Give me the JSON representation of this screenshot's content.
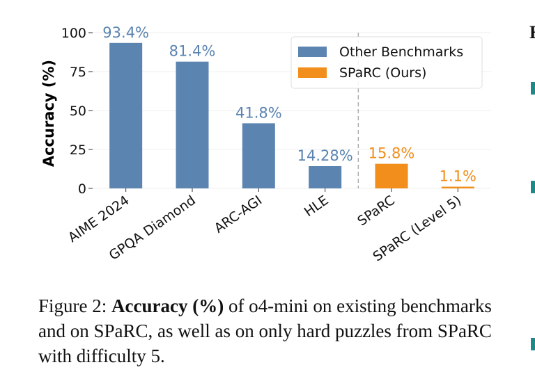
{
  "chart_data": {
    "type": "bar",
    "categories": [
      "AIME 2024",
      "GPQA Diamond",
      "ARC-AGI",
      "HLE",
      "SPaRC",
      "SPaRC (Level 5)"
    ],
    "values": [
      93.4,
      81.4,
      41.8,
      14.28,
      15.8,
      1.1
    ],
    "value_labels": [
      "93.4%",
      "81.4%",
      "41.8%",
      "14.28%",
      "15.8%",
      "1.1%"
    ],
    "groups": [
      "Other Benchmarks",
      "Other Benchmarks",
      "Other Benchmarks",
      "Other Benchmarks",
      "SPaRC (Ours)",
      "SPaRC (Ours)"
    ],
    "legend": [
      {
        "name": "Other Benchmarks",
        "color": "#5b84b1"
      },
      {
        "name": "SPaRC (Ours)",
        "color": "#f28e1c"
      }
    ],
    "legend_position": "top-right",
    "ylabel": "Accuracy (%)",
    "ylim": [
      0,
      100
    ],
    "yticks": [
      0,
      25,
      50,
      75,
      100
    ],
    "grid": true,
    "separator_after_index": 3
  },
  "caption": {
    "prefix": "Figure 2: ",
    "bold": "Accuracy (%)",
    "rest": " of o4-mini on existing benchmarks and on SPaRC, as well as on only hard puzzles from SPaRC with difficulty 5."
  },
  "edge": {
    "letter": "E"
  }
}
